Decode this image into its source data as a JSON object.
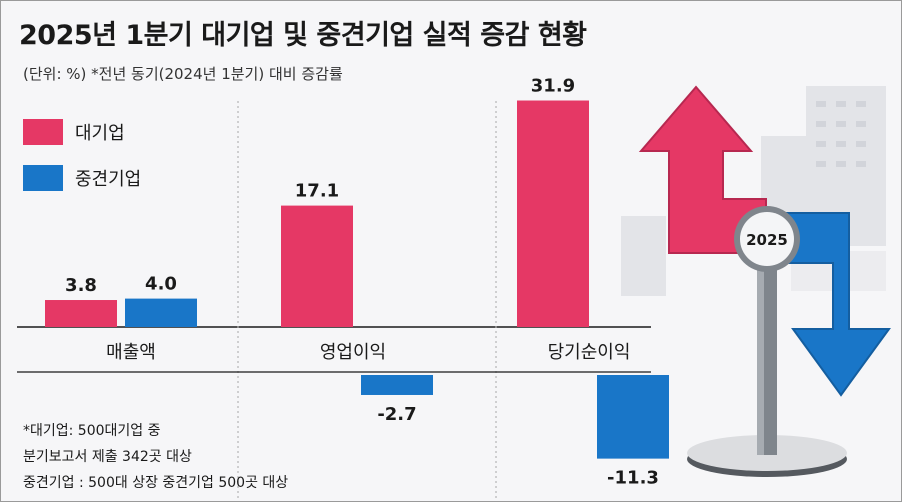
{
  "title": "2025년 1분기 대기업 및 중견기업 실적 증감 현황",
  "subtitle": "(단위: %)  *전년 동기(2024년 1분기) 대비 증감률",
  "illustration": {
    "badge": "2025"
  },
  "footnotes": [
    "*대기업: 500대기업 중",
    "분기보고서 제출 342곳 대상",
    "중견기업 : 500대 상장 중견기업 500곳 대상"
  ],
  "colors": {
    "large": "#e53865",
    "mid": "#1976c8"
  },
  "chart_data": {
    "type": "bar",
    "categories": [
      "매출액",
      "영업이익",
      "당기순이익"
    ],
    "series": [
      {
        "name": "대기업",
        "values": [
          3.8,
          17.1,
          31.9
        ],
        "labels": [
          "3.8",
          "17.1",
          "31.9"
        ]
      },
      {
        "name": "중견기업",
        "values": [
          4.0,
          -2.7,
          -11.3
        ],
        "labels": [
          "4.0",
          "-2.7",
          "-11.3"
        ]
      }
    ],
    "ylim": [
      -12,
      33
    ],
    "grid": false,
    "legend": "top-left"
  }
}
